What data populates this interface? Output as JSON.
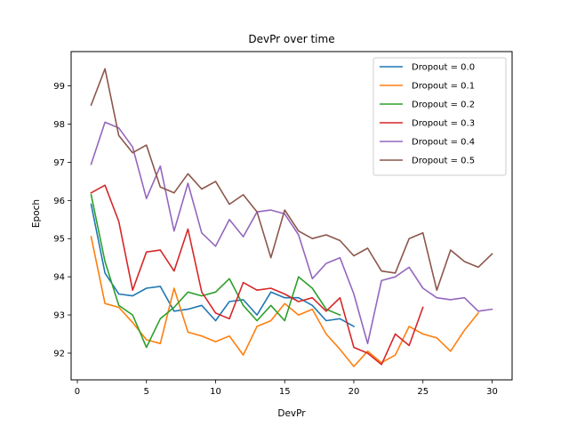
{
  "chart_data": {
    "type": "line",
    "title": "DevPr over time",
    "xlabel": "DevPr",
    "ylabel": "Epoch",
    "xlim": [
      -0.45,
      31.45
    ],
    "ylim": [
      91.3,
      99.9
    ],
    "xticks": [
      0,
      5,
      10,
      15,
      20,
      25,
      30
    ],
    "yticks": [
      92,
      93,
      94,
      95,
      96,
      97,
      98,
      99
    ],
    "grid": false,
    "legend_position": "top-right",
    "series": [
      {
        "name": "Dropout = 0.0",
        "color": "#1f77b4",
        "x": [
          1,
          2,
          3,
          4,
          5,
          6,
          7,
          8,
          9,
          10,
          11,
          12,
          13,
          14,
          15,
          16,
          17,
          18,
          19,
          20
        ],
        "values": [
          95.9,
          94.1,
          93.55,
          93.5,
          93.7,
          93.75,
          93.1,
          93.15,
          93.25,
          92.85,
          93.35,
          93.4,
          93.0,
          93.6,
          93.45,
          93.45,
          93.25,
          92.85,
          92.9,
          92.7
        ]
      },
      {
        "name": "Dropout = 0.1",
        "color": "#ff7f0e",
        "x": [
          1,
          2,
          3,
          4,
          5,
          6,
          7,
          8,
          9,
          10,
          11,
          12,
          13,
          14,
          15,
          16,
          17,
          18,
          19,
          20,
          21,
          22,
          23,
          24,
          25,
          26,
          27,
          28,
          29
        ],
        "values": [
          95.05,
          93.3,
          93.2,
          92.8,
          92.35,
          92.25,
          93.7,
          92.55,
          92.45,
          92.3,
          92.45,
          91.95,
          92.7,
          92.85,
          93.3,
          93.0,
          93.15,
          92.5,
          92.1,
          91.65,
          92.05,
          91.75,
          91.95,
          92.7,
          92.5,
          92.4,
          92.05,
          92.6,
          93.05
        ]
      },
      {
        "name": "Dropout = 0.2",
        "color": "#2ca02c",
        "x": [
          1,
          2,
          3,
          4,
          5,
          6,
          7,
          8,
          9,
          10,
          11,
          12,
          13,
          14,
          15,
          16,
          17,
          18,
          19
        ],
        "values": [
          96.15,
          94.4,
          93.25,
          93.0,
          92.15,
          92.9,
          93.2,
          93.6,
          93.5,
          93.6,
          93.95,
          93.25,
          92.85,
          93.25,
          92.85,
          94.0,
          93.7,
          93.15,
          93.0
        ]
      },
      {
        "name": "Dropout = 0.3",
        "color": "#d62728",
        "x": [
          1,
          2,
          3,
          4,
          5,
          6,
          7,
          8,
          9,
          10,
          11,
          12,
          13,
          14,
          15,
          16,
          17,
          18,
          19,
          20,
          21,
          22,
          23,
          24,
          25
        ],
        "values": [
          96.2,
          96.4,
          95.45,
          93.65,
          94.65,
          94.7,
          94.15,
          95.25,
          93.6,
          93.05,
          92.9,
          93.85,
          93.65,
          93.7,
          93.55,
          93.35,
          93.45,
          93.1,
          93.45,
          92.15,
          92.0,
          91.7,
          92.5,
          92.2,
          93.2
        ]
      },
      {
        "name": "Dropout = 0.4",
        "color": "#9467bd",
        "x": [
          1,
          2,
          3,
          4,
          5,
          6,
          7,
          8,
          9,
          10,
          11,
          12,
          13,
          14,
          15,
          16,
          17,
          18,
          19,
          20,
          21,
          22,
          23,
          24,
          25,
          26,
          27,
          28,
          29,
          30
        ],
        "values": [
          96.95,
          98.05,
          97.9,
          97.4,
          96.05,
          96.9,
          95.2,
          96.45,
          95.15,
          94.8,
          95.5,
          95.05,
          95.7,
          95.75,
          95.65,
          95.1,
          93.95,
          94.35,
          94.5,
          93.55,
          92.25,
          93.9,
          94.0,
          94.25,
          93.7,
          93.45,
          93.4,
          93.45,
          93.1,
          93.15
        ]
      },
      {
        "name": "Dropout = 0.5",
        "color": "#8c564b",
        "x": [
          1,
          2,
          3,
          4,
          5,
          6,
          7,
          8,
          9,
          10,
          11,
          12,
          13,
          14,
          15,
          16,
          17,
          18,
          19,
          20,
          21,
          22,
          23,
          24,
          25,
          26,
          27,
          28,
          29,
          30
        ],
        "values": [
          98.5,
          99.45,
          97.7,
          97.25,
          97.45,
          96.35,
          96.2,
          96.7,
          96.3,
          96.5,
          95.9,
          96.15,
          95.7,
          94.5,
          95.75,
          95.2,
          95.0,
          95.1,
          94.95,
          94.55,
          94.75,
          94.15,
          94.1,
          95.0,
          95.15,
          93.65,
          94.7,
          94.4,
          94.25,
          94.6
        ]
      }
    ]
  }
}
